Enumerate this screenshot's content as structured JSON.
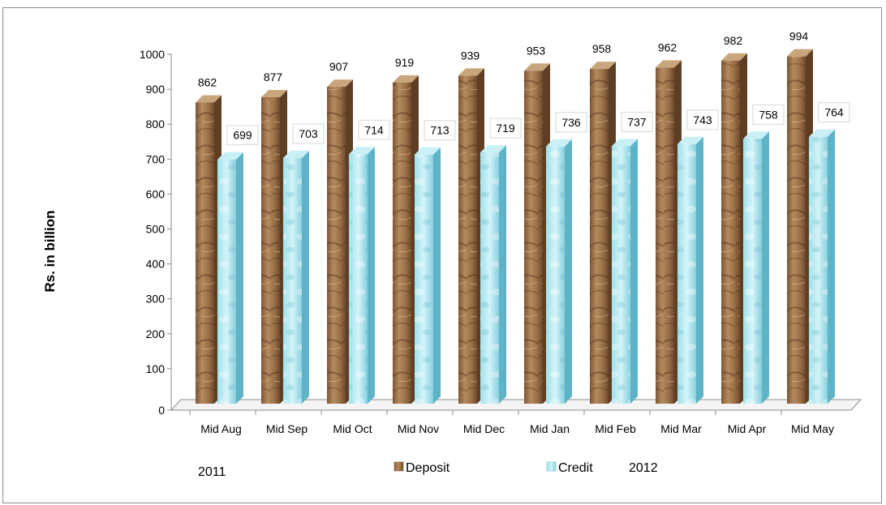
{
  "chart_data": {
    "type": "bar",
    "ylabel": "Rs. in billion",
    "ylim": [
      0,
      1000
    ],
    "yticks": [
      0,
      100,
      200,
      300,
      400,
      500,
      600,
      700,
      800,
      900,
      1000
    ],
    "categories": [
      "Mid Aug",
      "Mid Sep",
      "Mid Oct",
      "Mid Nov",
      "Mid Dec",
      "Mid Jan",
      "Mid Feb",
      "Mid Mar",
      "Mid Apr",
      "Mid May"
    ],
    "series": [
      {
        "name": "Deposit",
        "values": [
          862,
          877,
          907,
          919,
          939,
          953,
          958,
          962,
          982,
          994
        ],
        "color": "#a07a52"
      },
      {
        "name": "Credit",
        "values": [
          699,
          703,
          714,
          713,
          719,
          736,
          737,
          743,
          758,
          764
        ],
        "color": "#8fd6e4"
      }
    ],
    "year_labels": [
      "2011",
      "2012"
    ],
    "legend_position": "bottom",
    "grid": false
  }
}
